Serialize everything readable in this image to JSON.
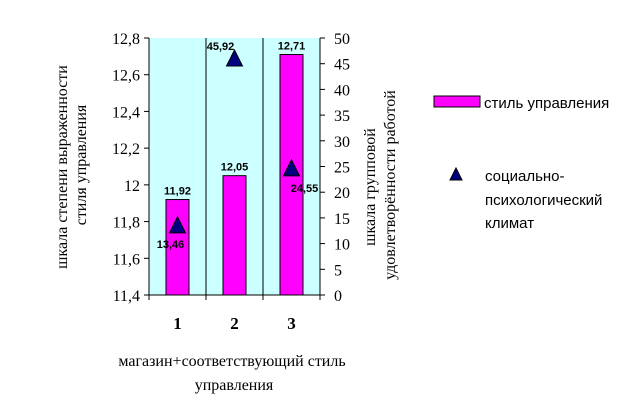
{
  "chart_data": {
    "type": "bar",
    "categories": [
      "1",
      "2",
      "3"
    ],
    "xlabel": "магазин+соответствующий стиль управления",
    "ylabel": "шкала степени выраженности стиля управления",
    "y2label": "шкала групповой удовлетворённости работой",
    "ylim": [
      11.4,
      12.8
    ],
    "y_ticks": [
      "11,4",
      "11,6",
      "11,8",
      "12",
      "12,2",
      "12,4",
      "12,6",
      "12,8"
    ],
    "y2lim": [
      0,
      50
    ],
    "y2_ticks": [
      "0",
      "5",
      "10",
      "15",
      "20",
      "25",
      "30",
      "35",
      "40",
      "45",
      "50"
    ],
    "grid": "vertical",
    "plot_background": "#ccffff",
    "legend_position": "right",
    "series": [
      {
        "name": "стиль управления",
        "kind": "bar",
        "axis": "left",
        "color": "#ff00ff",
        "values": [
          11.92,
          12.05,
          12.71
        ],
        "labels": [
          "11,92",
          "12,05",
          "12,71"
        ]
      },
      {
        "name": "социально-психологический климат",
        "kind": "marker",
        "marker": "triangle",
        "axis": "right",
        "color": "#000080",
        "values": [
          13.46,
          45.92,
          24.55
        ],
        "labels": [
          "13,46",
          "45,92",
          "24,55"
        ]
      }
    ]
  }
}
